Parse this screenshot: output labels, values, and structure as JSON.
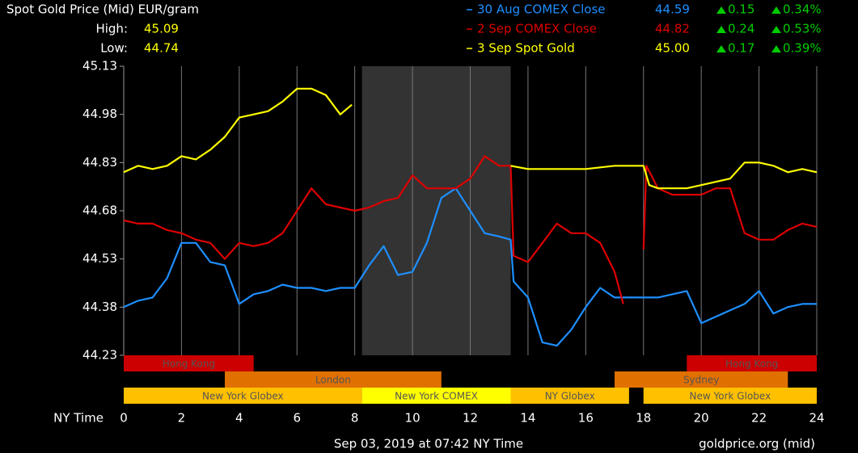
{
  "chart_data": {
    "type": "line",
    "title": "Spot Gold Price (Mid) EUR/gram",
    "high_label": "High:",
    "high": 45.09,
    "low_label": "Low:",
    "low": 44.74,
    "xlabel": "NY Time",
    "xlim": [
      0,
      24
    ],
    "xticks": [
      0,
      2,
      4,
      6,
      8,
      10,
      12,
      14,
      16,
      18,
      20,
      22,
      24
    ],
    "ylim": [
      44.23,
      45.13
    ],
    "yticks": [
      44.23,
      44.38,
      44.53,
      44.68,
      44.83,
      44.98,
      45.13
    ],
    "grid": true,
    "highlight": {
      "start": 8.25,
      "end": 13.4
    },
    "series": [
      {
        "name": "30 Aug COMEX Close",
        "color": "#1e8fff",
        "last": 44.59,
        "change": 0.15,
        "change_pct": {
          "value": 0.34,
          "label": "0.34%"
        },
        "x": [
          0,
          0.5,
          1,
          1.5,
          2,
          2.5,
          3,
          3.5,
          4,
          4.5,
          5,
          5.5,
          6,
          6.5,
          7,
          7.5,
          8,
          8.5,
          9,
          9.5,
          10,
          10.5,
          11,
          11.5,
          12,
          12.5,
          13,
          13.4,
          13.5,
          14,
          14.5,
          15,
          15.5,
          16,
          16.5,
          17,
          17.5,
          18,
          18.5,
          19,
          19.5,
          20,
          20.5,
          21,
          21.5,
          22,
          22.5,
          23,
          23.5,
          24
        ],
        "values": [
          44.38,
          44.4,
          44.41,
          44.47,
          44.58,
          44.58,
          44.52,
          44.51,
          44.39,
          44.42,
          44.43,
          44.45,
          44.44,
          44.44,
          44.43,
          44.44,
          44.44,
          44.51,
          44.57,
          44.48,
          44.49,
          44.58,
          44.72,
          44.75,
          44.68,
          44.61,
          44.6,
          44.59,
          44.46,
          44.41,
          44.27,
          44.26,
          44.31,
          44.38,
          44.44,
          44.41,
          44.41,
          44.41,
          44.41,
          44.42,
          44.43,
          44.33,
          44.35,
          44.37,
          44.39,
          44.43,
          44.36,
          44.38,
          44.39,
          44.39
        ]
      },
      {
        "name": "2 Sep COMEX Close",
        "color": "#dd0000",
        "last": 44.82,
        "change": 0.24,
        "change_pct": {
          "value": 0.53,
          "label": "0.53%"
        },
        "x": [
          0,
          0.5,
          1,
          1.5,
          2,
          2.5,
          3,
          3.5,
          4,
          4.5,
          5,
          5.5,
          6,
          6.5,
          7,
          7.5,
          8,
          8.5,
          9,
          9.5,
          10,
          10.5,
          11,
          11.5,
          12,
          12.5,
          13,
          13.4,
          13.5,
          14,
          14.5,
          15,
          15.5,
          16,
          16.5,
          17,
          17.3,
          17.65,
          18,
          18.1,
          18.5,
          19,
          19.5,
          20,
          20.5,
          21,
          21.5,
          22,
          22.5,
          23,
          23.5,
          24
        ],
        "values": [
          44.65,
          44.64,
          44.64,
          44.62,
          44.61,
          44.59,
          44.58,
          44.53,
          44.58,
          44.57,
          44.58,
          44.61,
          44.68,
          44.75,
          44.7,
          44.69,
          44.68,
          44.69,
          44.71,
          44.72,
          44.79,
          44.75,
          44.75,
          44.75,
          44.78,
          44.85,
          44.82,
          44.82,
          44.54,
          44.52,
          44.58,
          44.64,
          44.61,
          44.61,
          44.58,
          44.49,
          44.39,
          null,
          44.56,
          44.82,
          44.75,
          44.73,
          44.73,
          44.73,
          44.75,
          44.75,
          44.61,
          44.59,
          44.59,
          44.62,
          44.64,
          44.63
        ]
      },
      {
        "name": "3 Sep Spot Gold",
        "color": "#ffff00",
        "last": 45.0,
        "value_labels": {
          "last": "45.00"
        },
        "change": 0.17,
        "change_pct": {
          "value": 0.39,
          "label": "0.39%"
        },
        "x": [
          0,
          0.5,
          1,
          1.5,
          2,
          2.5,
          3,
          3.5,
          4,
          4.5,
          5,
          5.5,
          6,
          6.5,
          7,
          7.5,
          7.9,
          10,
          13.4,
          14,
          15,
          16,
          17,
          18,
          18.2,
          18.5,
          19,
          19.5,
          20,
          20.5,
          21,
          21.5,
          22,
          22.5,
          23,
          23.5,
          24
        ],
        "values": [
          44.8,
          44.82,
          44.81,
          44.82,
          44.85,
          44.84,
          44.87,
          44.91,
          44.97,
          44.98,
          44.99,
          45.02,
          45.06,
          45.06,
          45.04,
          44.98,
          45.01,
          null,
          44.82,
          44.81,
          44.81,
          44.81,
          44.82,
          44.82,
          44.76,
          44.75,
          44.75,
          44.75,
          44.76,
          44.77,
          44.78,
          44.83,
          44.83,
          44.82,
          44.8,
          44.81,
          44.8
        ]
      }
    ],
    "session_rows": [
      [
        {
          "label": "Hong Kong",
          "start": 0,
          "end": 4.5,
          "color": "#cc0000"
        },
        {
          "label": "Hong Kong",
          "start": 19.5,
          "end": 24,
          "color": "#cc0000"
        }
      ],
      [
        {
          "label": "London",
          "start": 3.5,
          "end": 11,
          "color": "#e07000"
        },
        {
          "label": "Sydney",
          "start": 17,
          "end": 23,
          "color": "#e07000"
        }
      ],
      [
        {
          "label": "New York Globex",
          "start": 0,
          "end": 8.25,
          "color": "#ffc000"
        },
        {
          "label": "New York COMEX",
          "start": 8.25,
          "end": 13.4,
          "color": "#ffff00"
        },
        {
          "label": "NY Globex",
          "start": 13.4,
          "end": 17.5,
          "color": "#ffc000"
        },
        {
          "label": "New York Globex",
          "start": 18,
          "end": 24,
          "color": "#ffc000"
        }
      ]
    ],
    "timestamp": "Sep 03, 2019 at 07:42 NY Time",
    "source": "goldprice.org (mid)"
  }
}
